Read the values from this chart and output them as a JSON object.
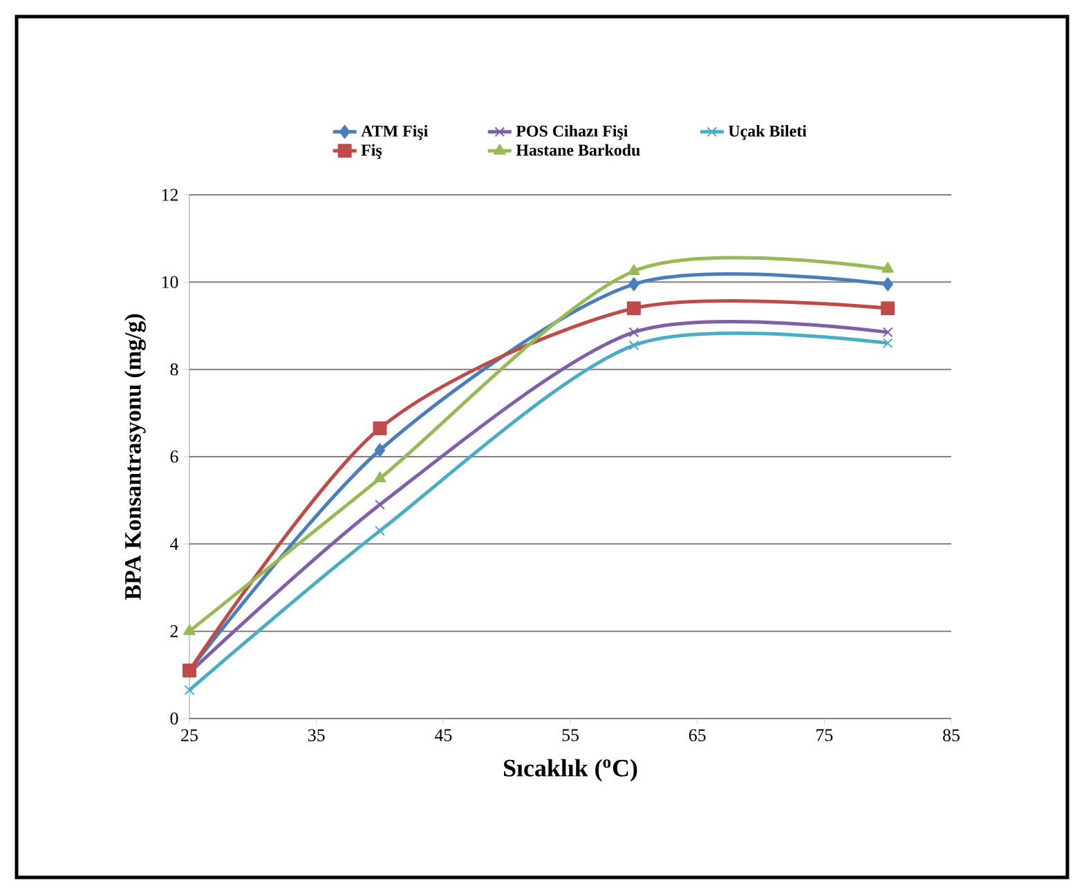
{
  "chart_data": {
    "type": "line",
    "xlabel": "Sıcaklık ($^{o}$C)",
    "ylabel": "BPA Konsantrasyonu (mg/g)",
    "x": [
      25,
      40,
      60,
      80
    ],
    "series": [
      {
        "name": "ATM Fişi",
        "color": "#4a7ebb",
        "marker": "diamond",
        "values": [
          1.1,
          6.15,
          9.95,
          9.95
        ]
      },
      {
        "name": "POS Cihazı Fişi",
        "color": "#7f5fa8",
        "marker": "cross",
        "values": [
          1.05,
          4.9,
          8.85,
          8.85
        ]
      },
      {
        "name": "Uçak Bileti",
        "color": "#4bacc6",
        "marker": "cross",
        "values": [
          0.65,
          4.3,
          8.55,
          8.6
        ]
      },
      {
        "name": "Fiş",
        "color": "#be4b48",
        "marker": "square",
        "values": [
          1.1,
          6.65,
          9.4,
          9.4
        ]
      },
      {
        "name": "Hastane Barkodu",
        "color": "#98b954",
        "marker": "triangle",
        "values": [
          2.0,
          5.5,
          10.25,
          10.3
        ]
      }
    ],
    "xlim": [
      25,
      85
    ],
    "xticks": [
      25,
      35,
      45,
      55,
      65,
      75,
      85
    ],
    "ylim": [
      0,
      12
    ],
    "yticks": [
      0,
      2,
      4,
      6,
      8,
      10,
      12
    ],
    "grid": "y",
    "legend": "top",
    "line_style": "solid"
  }
}
